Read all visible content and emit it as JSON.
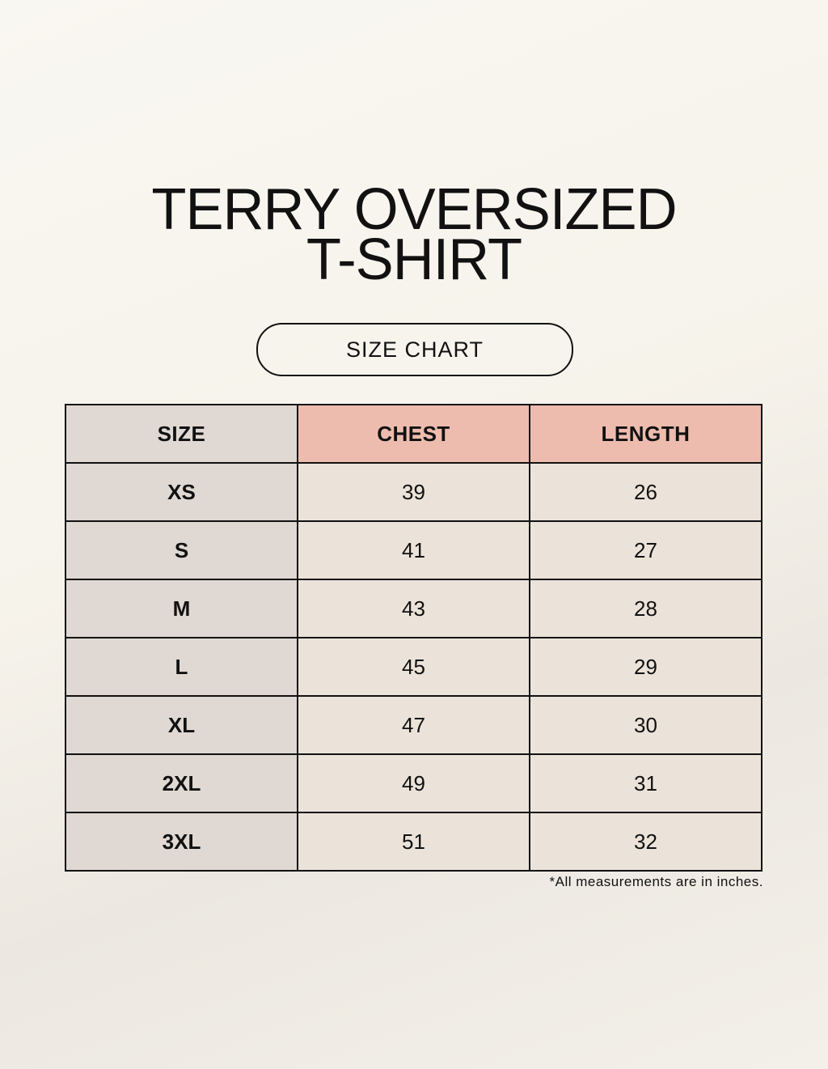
{
  "title": {
    "line1": "TERRY OVERSIZED",
    "line2": "T-SHIRT"
  },
  "subtitle": "SIZE CHART",
  "colors": {
    "size_column": "#e0d8d2",
    "header_accent": "#edbcae",
    "cell": "#ebe3d9",
    "border": "#111111"
  },
  "table": {
    "headers": [
      "SIZE",
      "CHEST",
      "LENGTH"
    ],
    "rows": [
      [
        "XS",
        "39",
        "26"
      ],
      [
        "S",
        "41",
        "27"
      ],
      [
        "M",
        "43",
        "28"
      ],
      [
        "L",
        "45",
        "29"
      ],
      [
        "XL",
        "47",
        "30"
      ],
      [
        "2XL",
        "49",
        "31"
      ],
      [
        "3XL",
        "51",
        "32"
      ]
    ]
  },
  "footnote": "*All measurements are in inches."
}
